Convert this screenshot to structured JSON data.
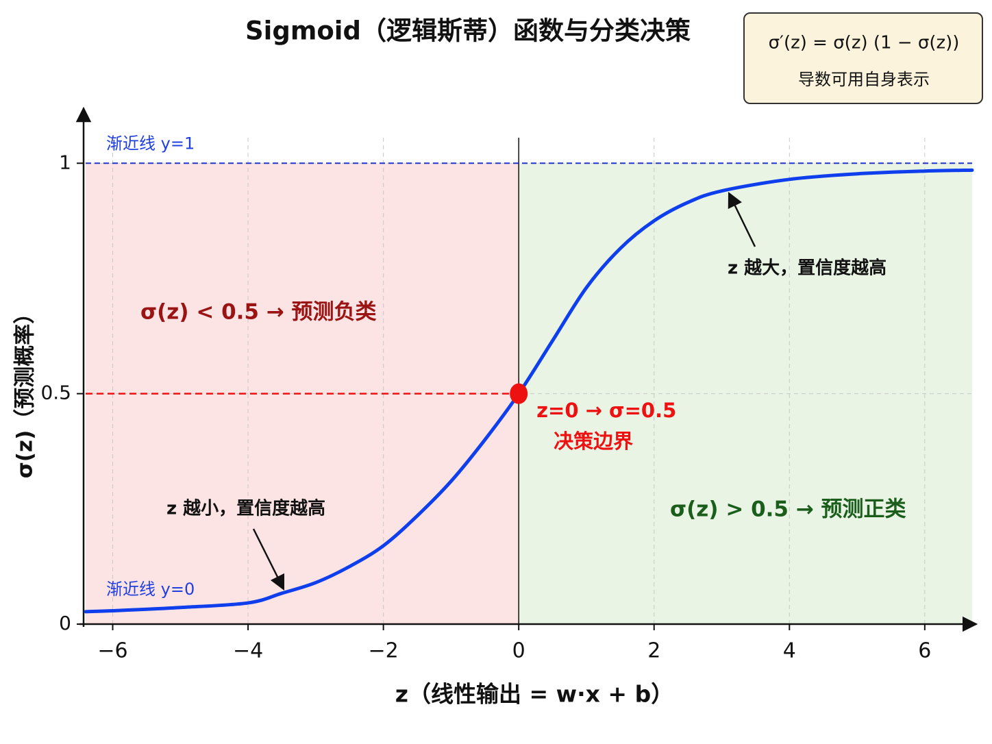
{
  "chart_data": {
    "type": "line",
    "title": "Sigmoid（逻辑斯蒂）函数与分类决策",
    "formula": "σ′(z) = σ(z) (1 − σ(z))",
    "formula_note": "导数可用自身表示",
    "x_label": "z（线性输出 = w·x + b）",
    "y_label": "σ(z)（预测概率）",
    "x": [
      -6.4,
      -6,
      -5,
      -4,
      -3.5,
      -3,
      -2.5,
      -2,
      -1.5,
      -1,
      -0.5,
      0,
      0.5,
      1,
      1.5,
      2,
      2.5,
      3,
      4,
      5,
      6,
      6.7
    ],
    "values": [
      0.027,
      0.029,
      0.036,
      0.046,
      0.067,
      0.09,
      0.125,
      0.17,
      0.235,
      0.31,
      0.4,
      0.5,
      0.615,
      0.73,
      0.815,
      0.875,
      0.915,
      0.94,
      0.965,
      0.977,
      0.983,
      0.985
    ],
    "color": "#0f3fec",
    "xlim": [
      -6.4,
      6.7
    ],
    "ylim": [
      0,
      1.1
    ],
    "xticks": [
      {
        "value": -6,
        "label": "−6"
      },
      {
        "value": -4,
        "label": "−4"
      },
      {
        "value": -2,
        "label": "−2"
      },
      0,
      2,
      4,
      6
    ],
    "yticks": [
      0,
      0.5,
      1
    ],
    "grid": true,
    "asymptotes": [
      {
        "label": "渐近线 y=1",
        "value": 1
      },
      {
        "label": "渐近线 y=0",
        "value": 0
      }
    ],
    "threshold": {
      "x": 0,
      "y": 0.5,
      "color": "#ee1111",
      "labels": [
        "z=0 → σ=0.5",
        "决策边界"
      ]
    },
    "regions": [
      {
        "label": "σ(z) < 0.5 → 预测负类",
        "color": "#fde4e4",
        "text_color": "#9b1414"
      },
      {
        "label": "σ(z) > 0.5 → 预测正类",
        "color": "#e9f4e5",
        "text_color": "#1b5e1b"
      }
    ],
    "annotations": [
      "z 越大，置信度越高",
      "z 越小，置信度越高"
    ]
  }
}
